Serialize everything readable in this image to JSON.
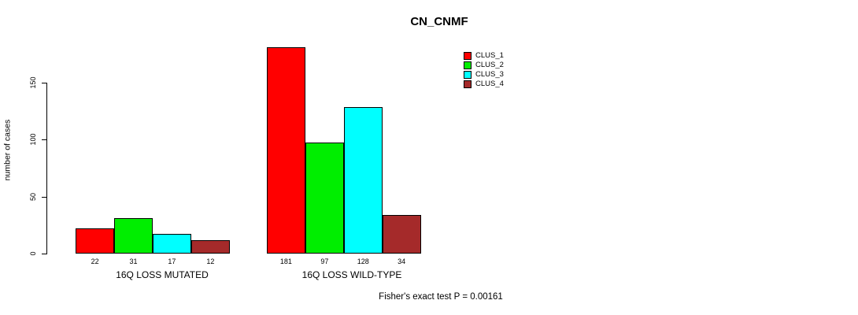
{
  "chart_data": {
    "type": "bar",
    "title": "CN_CNMF",
    "ylabel": "number of cases",
    "categories": [
      "16Q LOSS MUTATED",
      "16Q LOSS WILD-TYPE"
    ],
    "series": [
      {
        "name": "CLUS_1",
        "color": "#FF0000",
        "values": [
          22,
          181
        ]
      },
      {
        "name": "CLUS_2",
        "color": "#00EE00",
        "values": [
          31,
          97
        ]
      },
      {
        "name": "CLUS_3",
        "color": "#00FFFF",
        "values": [
          17,
          128
        ]
      },
      {
        "name": "CLUS_4",
        "color": "#A52A2A",
        "values": [
          12,
          34
        ]
      }
    ],
    "yticks": [
      0,
      50,
      100,
      150
    ],
    "ylim": [
      0,
      181
    ],
    "grid": false,
    "show_values_under_bars": true,
    "legend_position": "top-right",
    "annotation": "Fisher's exact test P = 0.00161"
  }
}
